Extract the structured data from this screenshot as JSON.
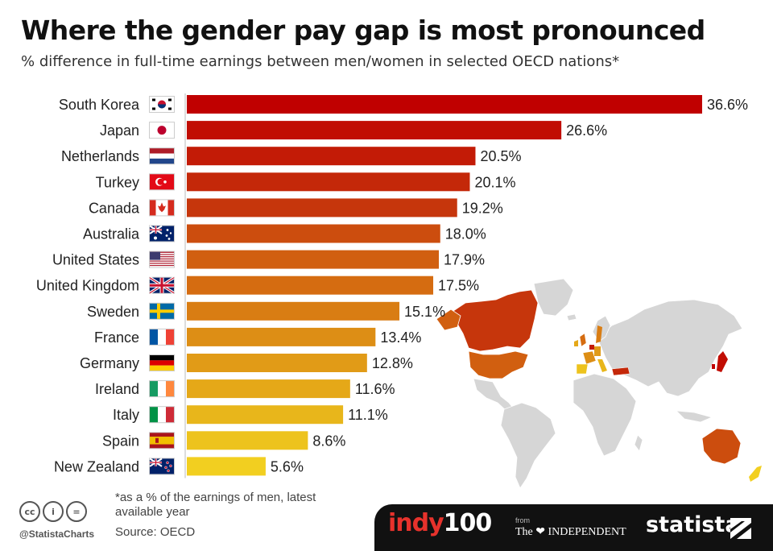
{
  "header": {
    "title": "Where the gender pay gap is most pronounced",
    "subtitle": "% difference in full-time earnings between men/women in selected OECD nations*"
  },
  "chart_data": {
    "type": "bar",
    "orientation": "horizontal",
    "categories": [
      "South Korea",
      "Japan",
      "Netherlands",
      "Turkey",
      "Canada",
      "Australia",
      "United States",
      "United Kingdom",
      "Sweden",
      "France",
      "Germany",
      "Ireland",
      "Italy",
      "Spain",
      "New Zealand"
    ],
    "values": [
      36.6,
      26.6,
      20.5,
      20.1,
      19.2,
      18.0,
      17.9,
      17.5,
      15.1,
      13.4,
      12.8,
      11.6,
      11.1,
      8.6,
      5.6
    ],
    "value_labels": [
      "36.6%",
      "26.6%",
      "20.5%",
      "20.1%",
      "19.2%",
      "18.0%",
      "17.9%",
      "17.5%",
      "15.1%",
      "13.4%",
      "12.8%",
      "11.6%",
      "11.1%",
      "8.6%",
      "5.6%"
    ],
    "colors": [
      "#c00000",
      "#c10d03",
      "#c31b06",
      "#c42809",
      "#c6360c",
      "#cc4d0e",
      "#d15f10",
      "#d56c11",
      "#d97d13",
      "#dd8e15",
      "#e19b17",
      "#e5a818",
      "#e8b61b",
      "#edc31d",
      "#f2cf20"
    ],
    "flags": [
      "south-korea-flag",
      "japan-flag",
      "netherlands-flag",
      "turkey-flag",
      "canada-flag",
      "australia-flag",
      "usa-flag",
      "uk-flag",
      "sweden-flag",
      "france-flag",
      "germany-flag",
      "ireland-flag",
      "italy-flag",
      "spain-flag",
      "new-zealand-flag"
    ],
    "xlim": [
      0,
      36.6
    ],
    "legend": "none",
    "grid": false
  },
  "map": {
    "description_name": "world-map",
    "base_color": "#d4d4d4"
  },
  "footer": {
    "footnote": "*as a % of the earnings of men, latest available year",
    "source": "Source: OECD",
    "cc_icons": [
      "cc",
      "i",
      "="
    ],
    "handle": "@StatistaCharts",
    "indy_word": "indy",
    "indy_number": "100",
    "from": "from",
    "independent": "The ❤ INDEPENDENT",
    "statista": "statista"
  }
}
